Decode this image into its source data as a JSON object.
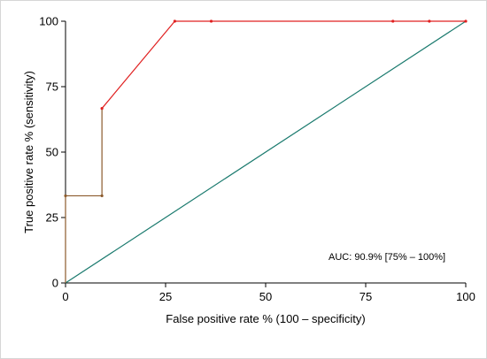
{
  "chart_data": {
    "type": "line",
    "title": "",
    "xlabel": "False positive rate % (100 – specificity)",
    "ylabel": "True positive rate % (sensitivity)",
    "xlim": [
      0,
      100
    ],
    "ylim": [
      0,
      100
    ],
    "xticks": [
      "0",
      "25",
      "50",
      "75",
      "100"
    ],
    "yticks": [
      "0",
      "25",
      "50",
      "75",
      "100"
    ],
    "grid": false,
    "legend": "none",
    "series": [
      {
        "color": "#e02020",
        "points": [
          {
            "x": 0,
            "y": 0
          },
          {
            "x": 0,
            "y": 33.3
          },
          {
            "x": 9.1,
            "y": 33.3
          },
          {
            "x": 9.1,
            "y": 66.7
          },
          {
            "x": 27.3,
            "y": 100
          },
          {
            "x": 36.4,
            "y": 100
          },
          {
            "x": 81.8,
            "y": 100
          },
          {
            "x": 90.9,
            "y": 100
          },
          {
            "x": 100,
            "y": 100
          }
        ]
      },
      {
        "color": "#1a7a6e",
        "points": [
          {
            "x": 0,
            "y": 0
          },
          {
            "x": 100,
            "y": 100
          }
        ]
      }
    ],
    "annotation": "AUC: 90.9% [75% – 100%]",
    "step_color": "#8b5a2b"
  }
}
